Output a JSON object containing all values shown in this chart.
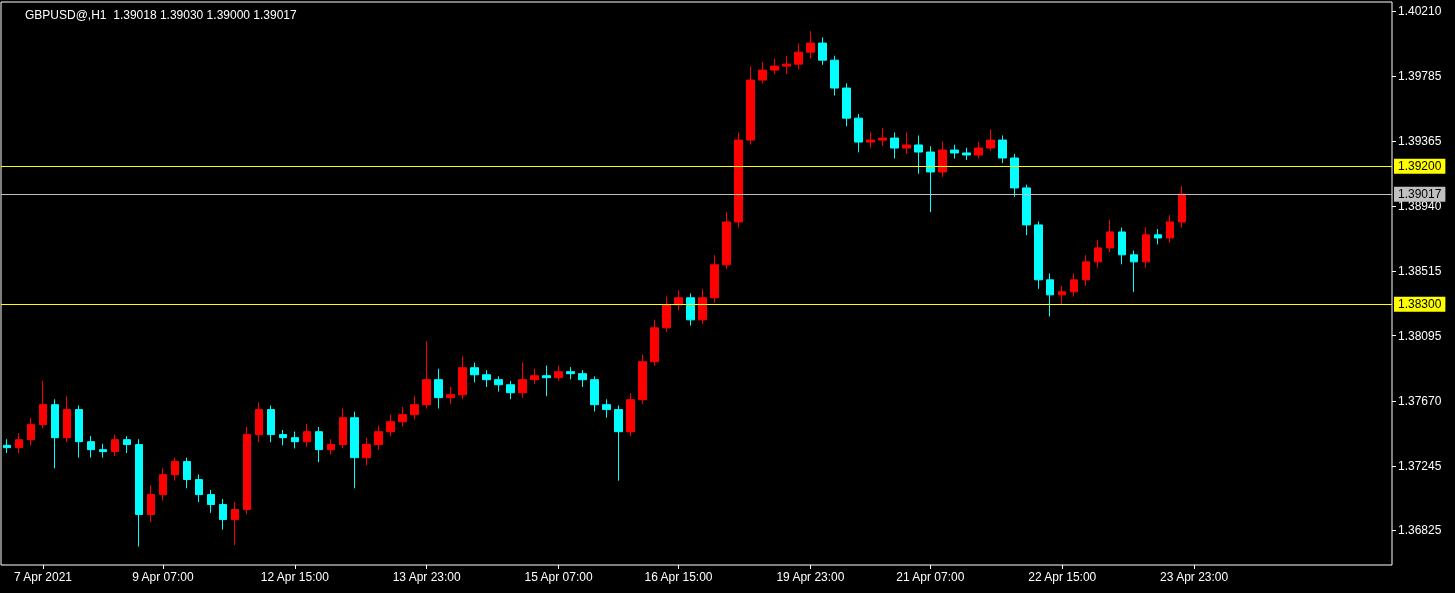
{
  "chart_data": {
    "type": "candlestick",
    "title": "GBPUSD@,H1  1.39018 1.39030 1.39000 1.39017",
    "categories": [
      null,
      null,
      null,
      "7 Apr 2021",
      null,
      null,
      null,
      null,
      null,
      null,
      null,
      null,
      null,
      "9 Apr 07:00",
      null,
      null,
      null,
      null,
      null,
      null,
      null,
      null,
      null,
      null,
      "12 Apr 15:00",
      null,
      null,
      null,
      null,
      null,
      null,
      null,
      null,
      null,
      null,
      "13 Apr 23:00",
      null,
      null,
      null,
      null,
      null,
      null,
      null,
      null,
      null,
      null,
      "15 Apr 07:00",
      null,
      null,
      null,
      null,
      null,
      null,
      null,
      null,
      null,
      "16 Apr 15:00",
      null,
      null,
      null,
      null,
      null,
      null,
      null,
      null,
      null,
      null,
      "19 Apr 23:00",
      null,
      null,
      null,
      null,
      null,
      null,
      null,
      null,
      null,
      "21 Apr 07:00",
      null,
      null,
      null,
      null,
      null,
      null,
      null,
      null,
      null,
      null,
      "22 Apr 15:00",
      null,
      null,
      null,
      null,
      null,
      null,
      null,
      null,
      null,
      null,
      "23 Apr 23:00",
      null,
      null,
      null,
      null,
      null,
      null,
      null,
      null,
      null,
      null,
      null,
      null,
      null,
      null,
      null,
      null
    ],
    "ohlc": [
      [
        1.3738,
        1.3742,
        1.3733,
        1.37365
      ],
      [
        1.37365,
        1.3746,
        1.3733,
        1.37417
      ],
      [
        1.37417,
        1.3756,
        1.3738,
        1.37515
      ],
      [
        1.37515,
        1.378,
        1.3749,
        1.37645
      ],
      [
        1.37645,
        1.3768,
        1.3723,
        1.3743
      ],
      [
        1.3743,
        1.377,
        1.374,
        1.37613
      ],
      [
        1.37613,
        1.3764,
        1.373,
        1.37404
      ],
      [
        1.37404,
        1.3744,
        1.373,
        1.37352
      ],
      [
        1.37352,
        1.3739,
        1.373,
        1.37339
      ],
      [
        1.37339,
        1.3745,
        1.3731,
        1.37417
      ],
      [
        1.37417,
        1.3744,
        1.3733,
        1.37385
      ],
      [
        1.37385,
        1.3742,
        1.3672,
        1.36929
      ],
      [
        1.36929,
        1.3712,
        1.3688,
        1.37059
      ],
      [
        1.37059,
        1.3723,
        1.3702,
        1.37189
      ],
      [
        1.37189,
        1.373,
        1.3715,
        1.37274
      ],
      [
        1.37274,
        1.373,
        1.371,
        1.37157
      ],
      [
        1.37157,
        1.3719,
        1.3701,
        1.37059
      ],
      [
        1.37059,
        1.3709,
        1.3694,
        1.36994
      ],
      [
        1.36994,
        1.3703,
        1.3683,
        1.36896
      ],
      [
        1.36896,
        1.3701,
        1.3673,
        1.36962
      ],
      [
        1.36962,
        1.375,
        1.3693,
        1.3745
      ],
      [
        1.3745,
        1.3766,
        1.374,
        1.37613
      ],
      [
        1.37613,
        1.3764,
        1.374,
        1.3745
      ],
      [
        1.3745,
        1.3748,
        1.3738,
        1.3743
      ],
      [
        1.3743,
        1.3747,
        1.3736,
        1.37404
      ],
      [
        1.37404,
        1.3752,
        1.3737,
        1.37469
      ],
      [
        1.37469,
        1.375,
        1.3727,
        1.37352
      ],
      [
        1.37352,
        1.3742,
        1.3732,
        1.37385
      ],
      [
        1.37385,
        1.3762,
        1.3736,
        1.3756
      ],
      [
        1.3756,
        1.376,
        1.371,
        1.373
      ],
      [
        1.373,
        1.3743,
        1.3725,
        1.37385
      ],
      [
        1.37385,
        1.3751,
        1.3735,
        1.37469
      ],
      [
        1.37469,
        1.3758,
        1.3744,
        1.37534
      ],
      [
        1.37534,
        1.3763,
        1.375,
        1.3758
      ],
      [
        1.3758,
        1.377,
        1.3755,
        1.37645
      ],
      [
        1.37645,
        1.3806,
        1.3762,
        1.37808
      ],
      [
        1.37808,
        1.3788,
        1.3762,
        1.37691
      ],
      [
        1.37691,
        1.3776,
        1.3765,
        1.3771
      ],
      [
        1.3771,
        1.3796,
        1.3768,
        1.37886
      ],
      [
        1.37886,
        1.3792,
        1.3779,
        1.3784
      ],
      [
        1.3784,
        1.3787,
        1.3776,
        1.37808
      ],
      [
        1.37808,
        1.3783,
        1.3773,
        1.37775
      ],
      [
        1.37775,
        1.378,
        1.3768,
        1.37723
      ],
      [
        1.37723,
        1.3792,
        1.3769,
        1.37808
      ],
      [
        1.37808,
        1.3788,
        1.3778,
        1.37834
      ],
      [
        1.37834,
        1.379,
        1.377,
        1.37821
      ],
      [
        1.37821,
        1.379,
        1.378,
        1.3786
      ],
      [
        1.3786,
        1.3789,
        1.3781,
        1.37847
      ],
      [
        1.37847,
        1.3787,
        1.3776,
        1.37808
      ],
      [
        1.37808,
        1.3783,
        1.376,
        1.37645
      ],
      [
        1.37645,
        1.3768,
        1.3756,
        1.37613
      ],
      [
        1.37613,
        1.3764,
        1.3715,
        1.37469
      ],
      [
        1.37469,
        1.3772,
        1.3744,
        1.37678
      ],
      [
        1.37678,
        1.3797,
        1.3765,
        1.37925
      ],
      [
        1.37925,
        1.382,
        1.379,
        1.38146
      ],
      [
        1.38146,
        1.3835,
        1.3812,
        1.38296
      ],
      [
        1.38296,
        1.3839,
        1.3826,
        1.38342
      ],
      [
        1.38342,
        1.3837,
        1.3816,
        1.38198
      ],
      [
        1.38198,
        1.384,
        1.3817,
        1.38342
      ],
      [
        1.38342,
        1.3862,
        1.3831,
        1.38557
      ],
      [
        1.38557,
        1.389,
        1.3853,
        1.38836
      ],
      [
        1.38836,
        1.3942,
        1.388,
        1.3937
      ],
      [
        1.3937,
        1.3985,
        1.3934,
        1.39761
      ],
      [
        1.39761,
        1.3988,
        1.3974,
        1.39826
      ],
      [
        1.39826,
        1.399,
        1.398,
        1.39852
      ],
      [
        1.39852,
        1.3992,
        1.398,
        1.39865
      ],
      [
        1.39865,
        1.4,
        1.3983,
        1.39943
      ],
      [
        1.39943,
        1.4008,
        1.399,
        1.40002
      ],
      [
        1.40002,
        1.4004,
        1.3986,
        1.39891
      ],
      [
        1.39891,
        1.3992,
        1.3966,
        1.39709
      ],
      [
        1.39709,
        1.3974,
        1.3946,
        1.39513
      ],
      [
        1.39513,
        1.3954,
        1.3929,
        1.39357
      ],
      [
        1.39357,
        1.3942,
        1.3932,
        1.3937
      ],
      [
        1.3937,
        1.3945,
        1.3933,
        1.39383
      ],
      [
        1.39383,
        1.3942,
        1.3925,
        1.39318
      ],
      [
        1.39318,
        1.3942,
        1.3928,
        1.39338
      ],
      [
        1.39338,
        1.394,
        1.3915,
        1.39292
      ],
      [
        1.39292,
        1.3933,
        1.389,
        1.39162
      ],
      [
        1.39162,
        1.3936,
        1.3913,
        1.39305
      ],
      [
        1.39305,
        1.3934,
        1.3925,
        1.39286
      ],
      [
        1.39286,
        1.3932,
        1.3924,
        1.39273
      ],
      [
        1.39273,
        1.3936,
        1.3925,
        1.39318
      ],
      [
        1.39318,
        1.3944,
        1.393,
        1.3937
      ],
      [
        1.3937,
        1.394,
        1.3922,
        1.39253
      ],
      [
        1.39253,
        1.3928,
        1.39,
        1.39058
      ],
      [
        1.39058,
        1.3908,
        1.3875,
        1.38817
      ],
      [
        1.38817,
        1.3884,
        1.384,
        1.38459
      ],
      [
        1.38459,
        1.385,
        1.3822,
        1.38361
      ],
      [
        1.38361,
        1.3842,
        1.383,
        1.38381
      ],
      [
        1.38381,
        1.385,
        1.3835,
        1.38459
      ],
      [
        1.38459,
        1.3862,
        1.3842,
        1.38576
      ],
      [
        1.38576,
        1.3872,
        1.3854,
        1.38667
      ],
      [
        1.38667,
        1.3885,
        1.3864,
        1.38771
      ],
      [
        1.38771,
        1.388,
        1.3856,
        1.38622
      ],
      [
        1.38622,
        1.3865,
        1.3838,
        1.38576
      ],
      [
        1.38576,
        1.388,
        1.3854,
        1.38752
      ],
      [
        1.38752,
        1.3879,
        1.3869,
        1.38732
      ],
      [
        1.38732,
        1.3888,
        1.387,
        1.38836
      ],
      [
        1.38836,
        1.3907,
        1.388,
        1.39017
      ],
      null,
      null,
      null,
      null,
      null,
      null,
      null,
      null,
      null,
      null,
      null,
      null,
      null,
      null,
      null,
      null,
      null
    ],
    "colors": [
      "#00ffff",
      "#ff0000",
      "#ff0000",
      "#ff0000",
      "#00ffff",
      "#ff0000",
      "#00ffff",
      "#00ffff",
      "#00ffff",
      "#ff0000",
      "#00ffff",
      "#00ffff",
      "#ff0000",
      "#ff0000",
      "#ff0000",
      "#00ffff",
      "#00ffff",
      "#00ffff",
      "#00ffff",
      "#ff0000",
      "#ff0000",
      "#ff0000",
      "#00ffff",
      "#00ffff",
      "#00ffff",
      "#ff0000",
      "#00ffff",
      "#ff0000",
      "#ff0000",
      "#00ffff",
      "#ff0000",
      "#ff0000",
      "#ff0000",
      "#ff0000",
      "#ff0000",
      "#ff0000",
      "#00ffff",
      "#ff0000",
      "#ff0000",
      "#00ffff",
      "#00ffff",
      "#00ffff",
      "#00ffff",
      "#ff0000",
      "#ff0000",
      "#00ffff",
      "#ff0000",
      "#00ffff",
      "#00ffff",
      "#00ffff",
      "#00ffff",
      "#00ffff",
      "#ff0000",
      "#ff0000",
      "#ff0000",
      "#ff0000",
      "#ff0000",
      "#00ffff",
      "#ff0000",
      "#ff0000",
      "#ff0000",
      "#ff0000",
      "#ff0000",
      "#ff0000",
      "#ff0000",
      "#ff0000",
      "#ff0000",
      "#ff0000",
      "#00ffff",
      "#00ffff",
      "#00ffff",
      "#00ffff",
      "#ff0000",
      "#ff0000",
      "#00ffff",
      "#ff0000",
      "#00ffff",
      "#00ffff",
      "#ff0000",
      "#00ffff",
      "#00ffff",
      "#ff0000",
      "#ff0000",
      "#00ffff",
      "#00ffff",
      "#00ffff",
      "#00ffff",
      "#00ffff",
      "#ff0000",
      "#ff0000",
      "#ff0000",
      "#ff0000",
      "#ff0000",
      "#00ffff",
      "#00ffff",
      "#ff0000",
      "#00ffff",
      "#ff0000",
      "#ff0000",
      null,
      null,
      null,
      null,
      null,
      null,
      null,
      null,
      null,
      null,
      null,
      null,
      null,
      null,
      null,
      null,
      null
    ],
    "ylim": [
      1.366,
      1.4027
    ],
    "yticks": [
      1.36825,
      1.37245,
      {
        "value": 1.3767,
        "label": "1.37670"
      },
      1.38095,
      1.38515,
      {
        "value": 1.3894,
        "label": "1.38940"
      },
      1.39365,
      1.39785,
      {
        "value": 1.4021,
        "label": "1.40210"
      }
    ],
    "ref_lines": [
      {
        "axis": "y",
        "value": 1.392,
        "label": "1.39200",
        "color": "#ffff00"
      },
      {
        "axis": "y",
        "value": 1.39017,
        "label": "1.39017",
        "color": "#c0c0c0"
      },
      {
        "axis": "y",
        "value": 1.383,
        "label": "1.38300",
        "color": "#ffff00"
      }
    ],
    "grid": false
  }
}
